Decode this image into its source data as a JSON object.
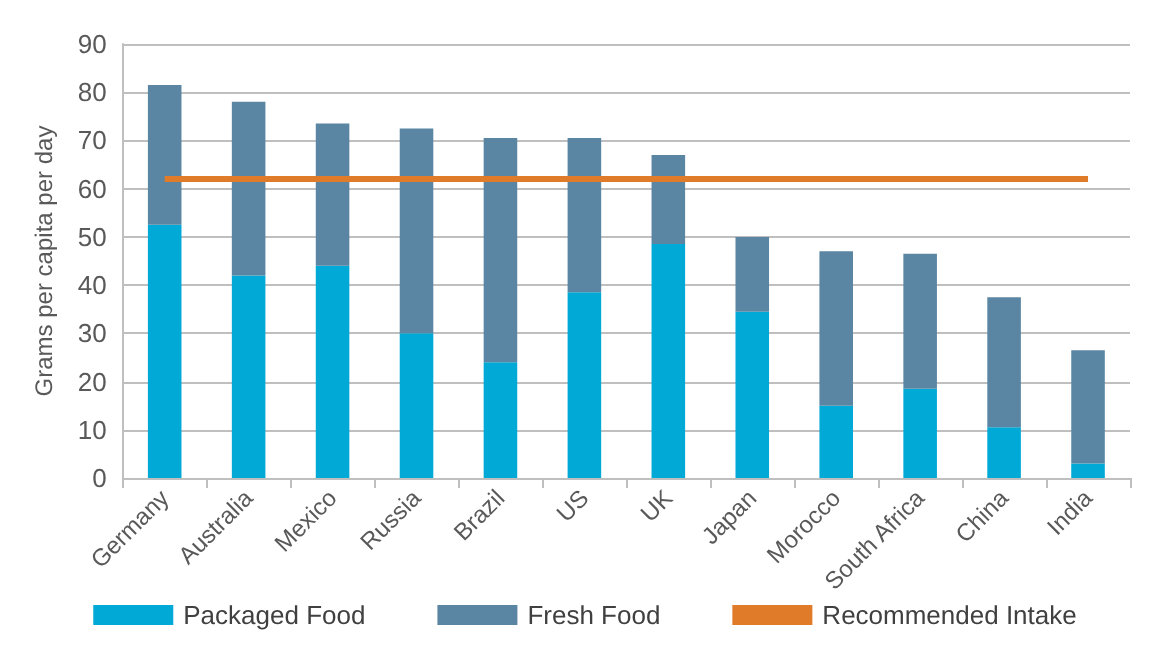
{
  "chart_data": {
    "type": "bar",
    "stacked": true,
    "ylabel": "Grams per capita per day",
    "categories": [
      "Germany",
      "Australia",
      "Mexico",
      "Russia",
      "Brazil",
      "US",
      "UK",
      "Japan",
      "Morocco",
      "South Africa",
      "China",
      "India"
    ],
    "series": [
      {
        "name": "Packaged Food",
        "color": "#00a9d6",
        "values": [
          52.5,
          42,
          44,
          30,
          24,
          38.5,
          48.5,
          34.5,
          15,
          18.5,
          10.5,
          3
        ]
      },
      {
        "name": "Fresh Food",
        "color": "#5b86a3",
        "values": [
          29,
          36,
          29.5,
          42.5,
          46.5,
          32,
          18.5,
          15.5,
          32,
          28,
          27,
          23.5
        ]
      }
    ],
    "ref_lines": [
      {
        "axis": "y",
        "value": 62,
        "label": "Recommended Intake",
        "color": "#e07b2a"
      }
    ],
    "ylim": [
      0,
      90
    ],
    "yticks": [
      0,
      10,
      20,
      30,
      40,
      50,
      60,
      70,
      80,
      90
    ],
    "grid": "y",
    "legend": "bottom"
  }
}
